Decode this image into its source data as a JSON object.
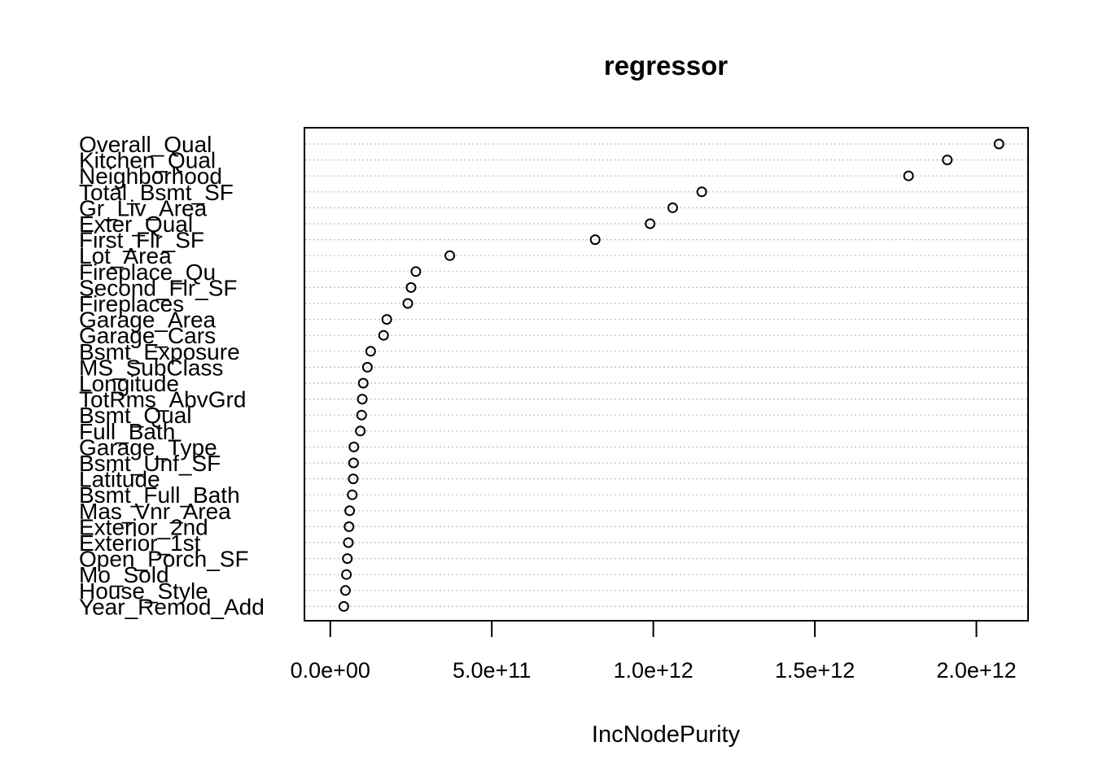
{
  "chart_data": {
    "type": "scatter",
    "title": "regressor",
    "xlabel": "IncNodePurity",
    "ylabel": "",
    "xlim": [
      -80000000000.0,
      2160000000000.0
    ],
    "xticks": [
      0,
      500000000000.0,
      1000000000000.0,
      1500000000000.0,
      2000000000000.0
    ],
    "xtick_labels": [
      "0.0e+00",
      "5.0e+11",
      "1.0e+12",
      "1.5e+12",
      "2.0e+12"
    ],
    "grid": "dotted horizontal lines per variable",
    "categories": [
      "Overall_Qual",
      "Kitchen_Qual",
      "Neighborhood",
      "Total_Bsmt_SF",
      "Gr_Liv_Area",
      "Exter_Qual",
      "First_Flr_SF",
      "Lot_Area",
      "Fireplace_Qu",
      "Second_Flr_SF",
      "Fireplaces",
      "Garage_Area",
      "Garage_Cars",
      "Bsmt_Exposure",
      "MS_SubClass",
      "Longitude",
      "TotRms_AbvGrd",
      "Bsmt_Qual",
      "Full_Bath",
      "Garage_Type",
      "Bsmt_Unf_SF",
      "Latitude",
      "Bsmt_Full_Bath",
      "Mas_Vnr_Area",
      "Exterior_2nd",
      "Exterior_1st",
      "Open_Porch_SF",
      "Mo_Sold",
      "House_Style",
      "Year_Remod_Add"
    ],
    "values": [
      2070000000000.0,
      1910000000000.0,
      1790000000000.0,
      1150000000000.0,
      1060000000000.0,
      990000000000.0,
      820000000000.0,
      370000000000.0,
      265000000000.0,
      250000000000.0,
      240000000000.0,
      175000000000.0,
      165000000000.0,
      125000000000.0,
      115000000000.0,
      102000000000.0,
      99000000000.0,
      97000000000.0,
      93000000000.0,
      73000000000.0,
      72000000000.0,
      71000000000.0,
      68000000000.0,
      60000000000.0,
      58000000000.0,
      56000000000.0,
      53000000000.0,
      50000000000.0,
      47000000000.0,
      42000000000.0
    ]
  }
}
